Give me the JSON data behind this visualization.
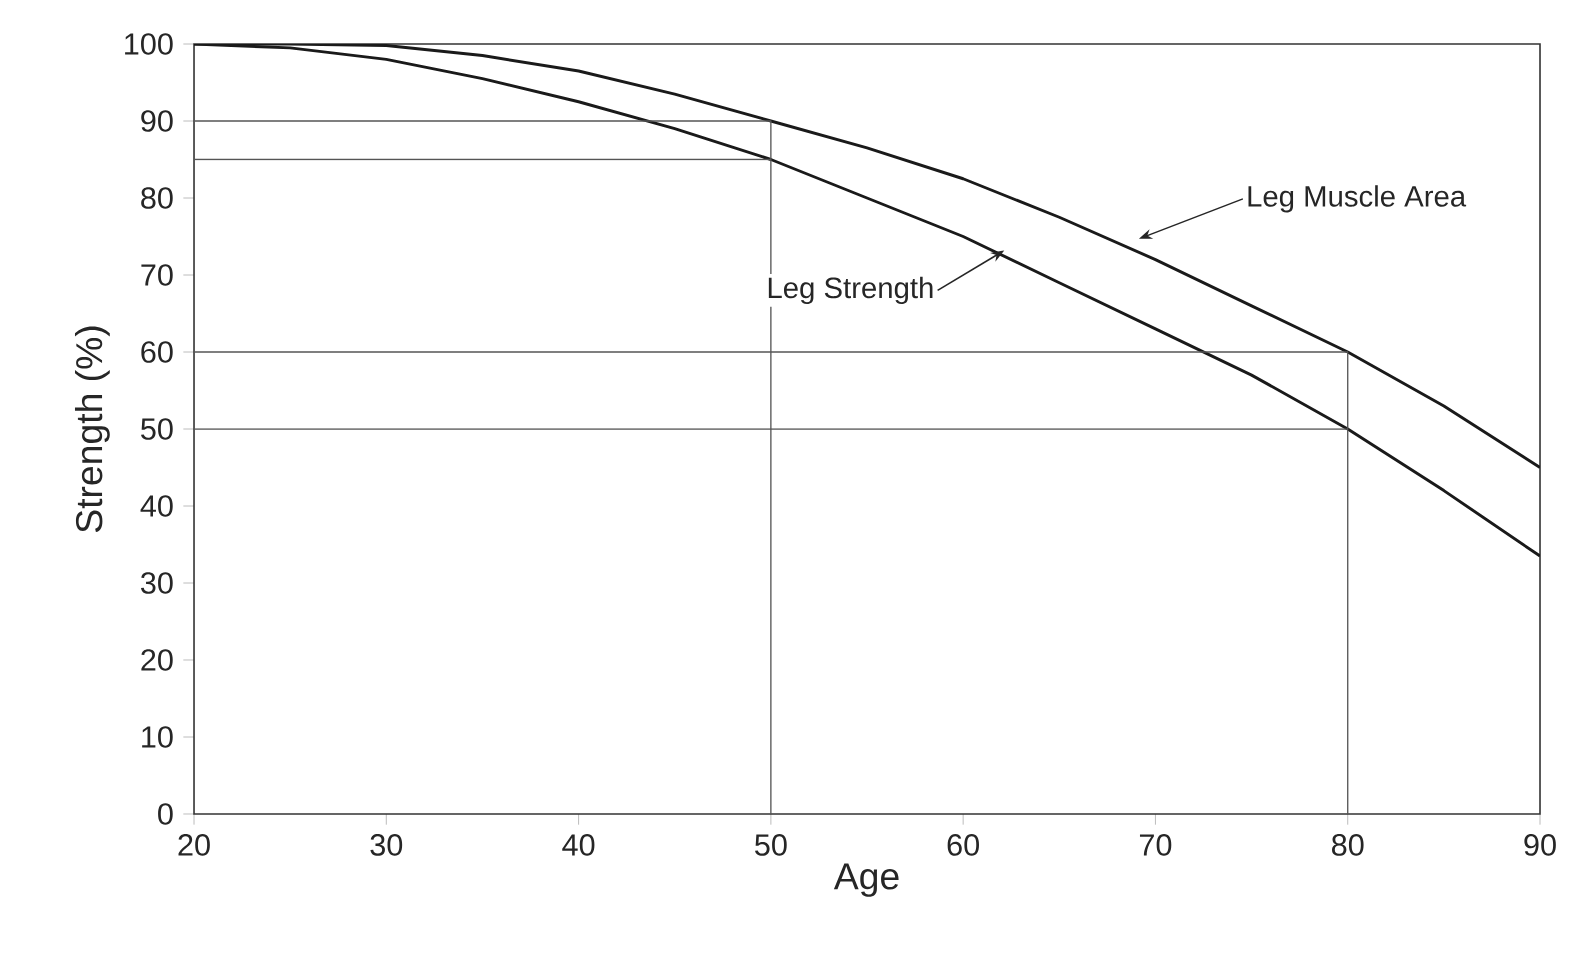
{
  "chart_data": {
    "type": "line",
    "xlabel": "Age",
    "ylabel": "Strength (%)",
    "xlim": [
      20,
      90
    ],
    "xticks": [
      20,
      30,
      40,
      50,
      60,
      70,
      80,
      90
    ],
    "ylim": [
      0,
      100
    ],
    "yticks": [
      0,
      10,
      20,
      30,
      40,
      50,
      60,
      70,
      80,
      90,
      100
    ],
    "grid": false,
    "marker": "none",
    "series": [
      {
        "color": "#1a1a1a",
        "x": [
          20,
          25,
          30,
          35,
          40,
          45,
          50,
          55,
          60,
          65,
          70,
          75,
          80,
          85,
          90
        ],
        "values": [
          100,
          100,
          99.8,
          98.5,
          96.5,
          93.5,
          90,
          86.5,
          82.5,
          77.5,
          72,
          66,
          60,
          53,
          45
        ]
      },
      {
        "color": "#1a1a1a",
        "x": [
          20,
          25,
          30,
          35,
          40,
          45,
          50,
          55,
          60,
          65,
          70,
          75,
          80,
          85,
          90
        ],
        "values": [
          100,
          99.5,
          98,
          95.5,
          92.5,
          89,
          85,
          80,
          75,
          69,
          63,
          57,
          50,
          42,
          33.5
        ]
      },
      {
        "color": "#555555",
        "x": [
          20,
          50,
          50
        ],
        "values": [
          90,
          90,
          0
        ]
      },
      {
        "color": "#555555",
        "x": [
          20,
          50
        ],
        "values": [
          85,
          85
        ]
      },
      {
        "color": "#555555",
        "x": [
          20,
          80,
          80
        ],
        "values": [
          60,
          60,
          0
        ]
      },
      {
        "color": "#555555",
        "x": [
          20,
          80
        ],
        "values": [
          50,
          50
        ]
      }
    ],
    "annotations": [
      {
        "text": "Leg Muscle Area",
        "x": 69,
        "y": 74
      },
      {
        "text": "Leg Strength",
        "x": 62,
        "y": 72.5
      }
    ]
  }
}
